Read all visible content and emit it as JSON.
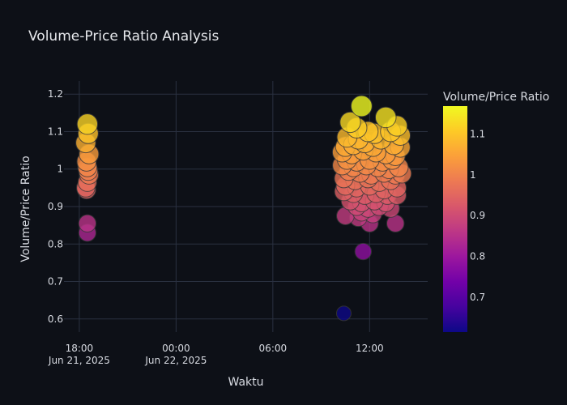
{
  "chart_data": {
    "type": "scatter",
    "title": "Volume-Price Ratio Analysis",
    "xlabel": "Waktu",
    "ylabel": "Volume/Price Ratio",
    "colorbar_title": "Volume/Price Ratio",
    "x_ticks": [
      {
        "hours": 18,
        "line1": "18:00",
        "line2": "Jun 21, 2025"
      },
      {
        "hours": 24,
        "line1": "00:00",
        "line2": "Jun 22, 2025"
      },
      {
        "hours": 30,
        "line1": "06:00",
        "line2": ""
      },
      {
        "hours": 36,
        "line1": "12:00",
        "line2": ""
      }
    ],
    "y_ticks": [
      0.6,
      0.7,
      0.8,
      0.9,
      1,
      1.1,
      1.2
    ],
    "y_tick_labels": [
      "0.6",
      "0.7",
      "0.8",
      "0.9",
      "1",
      "1.1",
      "1.2"
    ],
    "xlim_hours": [
      17.05,
      39.6
    ],
    "ylim": [
      0.565,
      1.235
    ],
    "colorscale": {
      "min": 0.615,
      "max": 1.168,
      "stops": [
        "#0d0887",
        "#46039f",
        "#7201a8",
        "#9c179e",
        "#bd3786",
        "#d8576b",
        "#ed7953",
        "#fb9f3a",
        "#fdca26",
        "#f0f921"
      ],
      "tick_values": [
        0.7,
        0.8,
        0.9,
        1,
        1.1
      ],
      "tick_labels": [
        "0.7",
        "0.8",
        "0.9",
        "1",
        "1.1"
      ]
    },
    "grid": true,
    "points": [
      {
        "t": 18.5,
        "v": 1.12
      },
      {
        "t": 18.55,
        "v": 1.095
      },
      {
        "t": 18.4,
        "v": 1.07
      },
      {
        "t": 18.6,
        "v": 1.04
      },
      {
        "t": 18.45,
        "v": 1.02
      },
      {
        "t": 18.5,
        "v": 1.005
      },
      {
        "t": 18.55,
        "v": 0.995
      },
      {
        "t": 18.6,
        "v": 0.985
      },
      {
        "t": 18.5,
        "v": 0.965
      },
      {
        "t": 18.4,
        "v": 0.95
      },
      {
        "t": 18.45,
        "v": 0.945
      },
      {
        "t": 18.5,
        "v": 0.855
      },
      {
        "t": 18.5,
        "v": 0.83
      },
      {
        "t": 34.4,
        "v": 0.615
      },
      {
        "t": 35.6,
        "v": 0.78
      },
      {
        "t": 35.5,
        "v": 1.168
      },
      {
        "t": 37.0,
        "v": 1.138
      },
      {
        "t": 34.8,
        "v": 1.125
      },
      {
        "t": 35.2,
        "v": 1.11
      },
      {
        "t": 37.7,
        "v": 1.115
      },
      {
        "t": 35.9,
        "v": 1.1
      },
      {
        "t": 36.3,
        "v": 1.095
      },
      {
        "t": 37.3,
        "v": 1.1
      },
      {
        "t": 37.9,
        "v": 1.09
      },
      {
        "t": 34.6,
        "v": 1.085
      },
      {
        "t": 35.3,
        "v": 1.08
      },
      {
        "t": 36.7,
        "v": 1.08
      },
      {
        "t": 34.5,
        "v": 1.06
      },
      {
        "t": 35.0,
        "v": 1.065
      },
      {
        "t": 35.7,
        "v": 1.07
      },
      {
        "t": 36.2,
        "v": 1.06
      },
      {
        "t": 37.5,
        "v": 1.065
      },
      {
        "t": 37.9,
        "v": 1.058
      },
      {
        "t": 34.3,
        "v": 1.045
      },
      {
        "t": 34.9,
        "v": 1.04
      },
      {
        "t": 35.6,
        "v": 1.05
      },
      {
        "t": 36.4,
        "v": 1.045
      },
      {
        "t": 37.0,
        "v": 1.04
      },
      {
        "t": 37.6,
        "v": 1.035
      },
      {
        "t": 34.6,
        "v": 1.025
      },
      {
        "t": 35.2,
        "v": 1.02
      },
      {
        "t": 36.0,
        "v": 1.025
      },
      {
        "t": 36.8,
        "v": 1.02
      },
      {
        "t": 37.4,
        "v": 1.025
      },
      {
        "t": 34.3,
        "v": 1.01
      },
      {
        "t": 35.0,
        "v": 1.005
      },
      {
        "t": 35.8,
        "v": 1.01
      },
      {
        "t": 36.5,
        "v": 1.005
      },
      {
        "t": 37.2,
        "v": 1.0
      },
      {
        "t": 37.8,
        "v": 1.005
      },
      {
        "t": 34.7,
        "v": 0.995
      },
      {
        "t": 35.4,
        "v": 0.99
      },
      {
        "t": 36.1,
        "v": 0.985
      },
      {
        "t": 36.9,
        "v": 0.99
      },
      {
        "t": 37.6,
        "v": 0.985
      },
      {
        "t": 38.0,
        "v": 0.988
      },
      {
        "t": 34.4,
        "v": 0.975
      },
      {
        "t": 35.1,
        "v": 0.97
      },
      {
        "t": 35.9,
        "v": 0.975
      },
      {
        "t": 36.6,
        "v": 0.965
      },
      {
        "t": 37.3,
        "v": 0.97
      },
      {
        "t": 34.5,
        "v": 0.955
      },
      {
        "t": 35.2,
        "v": 0.95
      },
      {
        "t": 36.0,
        "v": 0.955
      },
      {
        "t": 36.9,
        "v": 0.945
      },
      {
        "t": 37.7,
        "v": 0.95
      },
      {
        "t": 34.4,
        "v": 0.94
      },
      {
        "t": 35.0,
        "v": 0.935
      },
      {
        "t": 35.7,
        "v": 0.93
      },
      {
        "t": 36.4,
        "v": 0.935
      },
      {
        "t": 37.1,
        "v": 0.93
      },
      {
        "t": 37.7,
        "v": 0.93
      },
      {
        "t": 34.8,
        "v": 0.915
      },
      {
        "t": 35.5,
        "v": 0.91
      },
      {
        "t": 36.3,
        "v": 0.915
      },
      {
        "t": 37.0,
        "v": 0.91
      },
      {
        "t": 35.2,
        "v": 0.9
      },
      {
        "t": 35.9,
        "v": 0.895
      },
      {
        "t": 36.6,
        "v": 0.9
      },
      {
        "t": 37.3,
        "v": 0.895
      },
      {
        "t": 35.5,
        "v": 0.885
      },
      {
        "t": 36.2,
        "v": 0.88
      },
      {
        "t": 34.5,
        "v": 0.875
      },
      {
        "t": 35.3,
        "v": 0.87
      },
      {
        "t": 36.0,
        "v": 0.855
      },
      {
        "t": 37.6,
        "v": 0.855
      }
    ]
  }
}
